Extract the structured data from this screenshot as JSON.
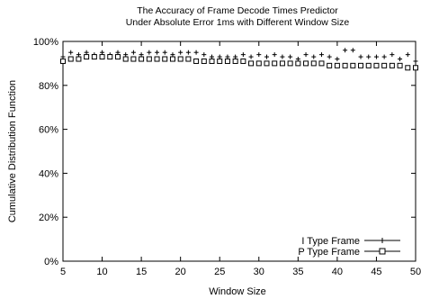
{
  "chart_data": {
    "type": "scatter",
    "title": "The Accuracy of Frame Decode Times Predictor",
    "subtitle": "Under Absolute Error 1ms with Different Window Size",
    "xlabel": "Window Size",
    "ylabel": "Cumulative Distribution Function",
    "xlim": [
      5,
      50
    ],
    "ylim": [
      0,
      100
    ],
    "xticks": [
      "5",
      "10",
      "15",
      "20",
      "25",
      "30",
      "35",
      "40",
      "45",
      "50"
    ],
    "yticks": [
      "0%",
      "20%",
      "40%",
      "60%",
      "80%",
      "100%"
    ],
    "grid": false,
    "legend_position": "bottom-right",
    "series": [
      {
        "name": "I Type Frame",
        "marker": "plus",
        "x": [
          5,
          6,
          7,
          8,
          9,
          10,
          11,
          12,
          13,
          14,
          15,
          16,
          17,
          18,
          19,
          20,
          21,
          22,
          23,
          24,
          25,
          26,
          27,
          28,
          29,
          30,
          31,
          32,
          33,
          34,
          35,
          36,
          37,
          38,
          39,
          40,
          41,
          42,
          43,
          44,
          45,
          46,
          47,
          48,
          49,
          50
        ],
        "values": [
          93,
          95,
          94,
          95,
          94,
          95,
          94,
          95,
          94,
          95,
          94,
          95,
          95,
          95,
          94,
          95,
          95,
          95,
          94,
          93,
          93,
          93,
          93,
          94,
          93,
          94,
          93,
          94,
          93,
          93,
          92,
          94,
          93,
          94,
          93,
          92,
          96,
          96,
          93,
          93,
          93,
          93,
          94,
          92,
          94,
          91
        ]
      },
      {
        "name": "P Type Frame",
        "marker": "square",
        "x": [
          5,
          6,
          7,
          8,
          9,
          10,
          11,
          12,
          13,
          14,
          15,
          16,
          17,
          18,
          19,
          20,
          21,
          22,
          23,
          24,
          25,
          26,
          27,
          28,
          29,
          30,
          31,
          32,
          33,
          34,
          35,
          36,
          37,
          38,
          39,
          40,
          41,
          42,
          43,
          44,
          45,
          46,
          47,
          48,
          49,
          50
        ],
        "values": [
          91,
          92,
          92,
          93,
          93,
          93,
          93,
          93,
          92,
          92,
          92,
          92,
          92,
          92,
          92,
          92,
          92,
          91,
          91,
          91,
          91,
          91,
          91,
          91,
          90,
          90,
          90,
          90,
          90,
          90,
          90,
          90,
          90,
          90,
          89,
          89,
          89,
          89,
          89,
          89,
          89,
          89,
          89,
          89,
          88,
          88
        ]
      }
    ]
  }
}
